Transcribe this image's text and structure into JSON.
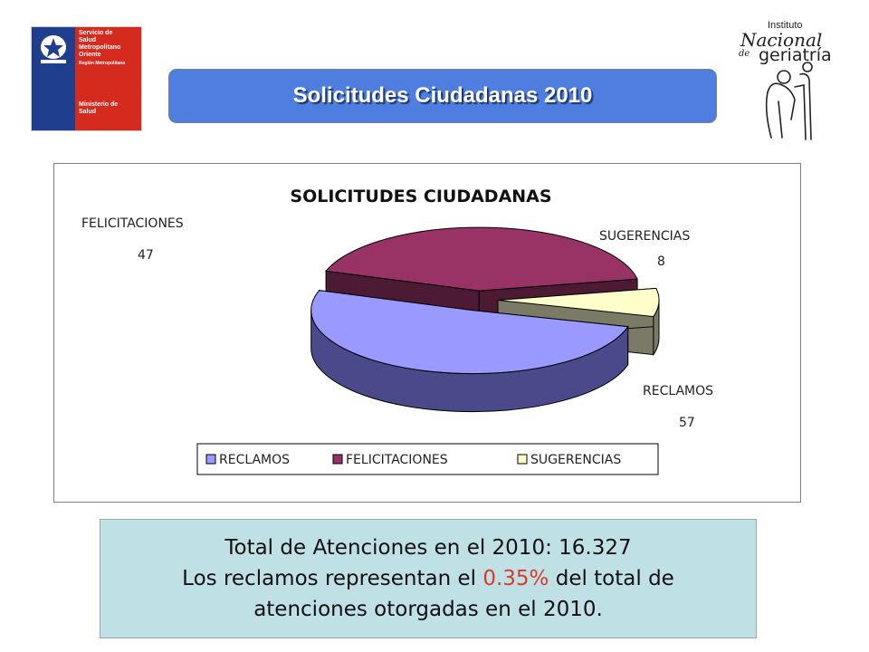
{
  "header": {
    "title": "Solicitudes Ciudadanas 2010",
    "gov_logo": {
      "line1": "Servicio de",
      "line2": "Salud",
      "line3": "Metropolitano",
      "line4": "Oriente",
      "line5": "Región Metropolitana",
      "line6": "Ministerio de",
      "line7": "Salud"
    },
    "institute_logo": {
      "line1": "Instituto",
      "line2": "Nacional",
      "line3": "de",
      "line4": "geriatría"
    }
  },
  "chart_data": {
    "type": "pie",
    "title": "SOLICITUDES CIUDADANAS",
    "categories": [
      "RECLAMOS",
      "FELICITACIONES",
      "SUGERENCIAS"
    ],
    "values": [
      57,
      47,
      8
    ],
    "colors": [
      "#9999ff",
      "#993366",
      "#ffffcc"
    ],
    "side_colors": [
      "#4a4a8a",
      "#4d1a33",
      "#7a7a66"
    ],
    "exploded": true,
    "three_d": true,
    "legend_position": "bottom",
    "data_labels": [
      {
        "name": "RECLAMOS",
        "value": "57"
      },
      {
        "name": "FELICITACIONES",
        "value": "47"
      },
      {
        "name": "SUGERENCIAS",
        "value": "8"
      }
    ]
  },
  "note": {
    "line1": "Total de Atenciones en el 2010: 16.327",
    "line2_a": "Los reclamos representan el ",
    "line2_highlight": "0.35%",
    "line2_b": " del total de",
    "line3": "atenciones otorgadas en el 2010."
  }
}
